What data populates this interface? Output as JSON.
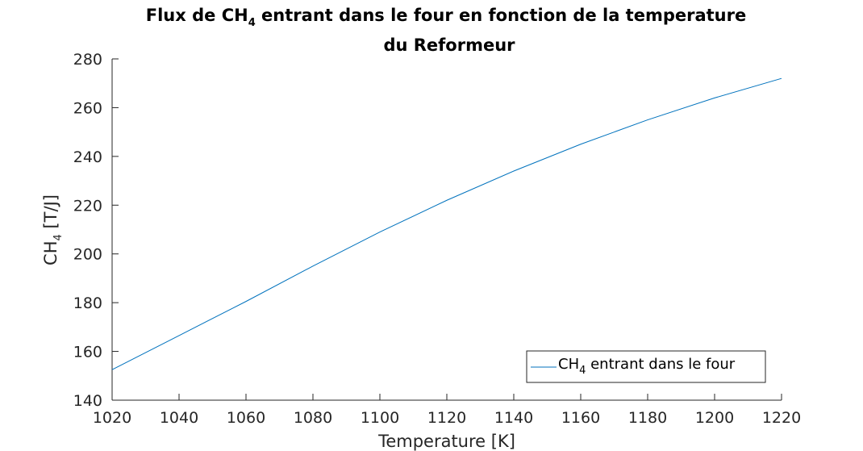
{
  "chart_data": {
    "type": "line",
    "title": {
      "line1_prefix": "Flux de CH",
      "line1_sub": "4",
      "line1_suffix": " entrant dans le four en fonction de la temperature",
      "line2": "du Reformeur"
    },
    "xlabel": "Temperature [K]",
    "ylabel": {
      "prefix": "CH",
      "sub": "4",
      "suffix": " [T/J]"
    },
    "xlim": [
      1020,
      1220
    ],
    "ylim": [
      140,
      280
    ],
    "xticks": [
      1020,
      1040,
      1060,
      1080,
      1100,
      1120,
      1140,
      1160,
      1180,
      1200,
      1220
    ],
    "yticks": [
      140,
      160,
      180,
      200,
      220,
      240,
      260,
      280
    ],
    "grid": false,
    "legend_position": "bottom-right",
    "series": [
      {
        "name": {
          "prefix": "CH",
          "sub": "4",
          "suffix": " entrant dans le four"
        },
        "color": "#0072BD",
        "x": [
          1020,
          1040,
          1060,
          1080,
          1100,
          1120,
          1140,
          1160,
          1180,
          1200,
          1220
        ],
        "y": [
          152.5,
          166.5,
          180.5,
          195,
          209,
          222,
          234,
          245,
          255,
          264,
          272
        ]
      }
    ]
  }
}
